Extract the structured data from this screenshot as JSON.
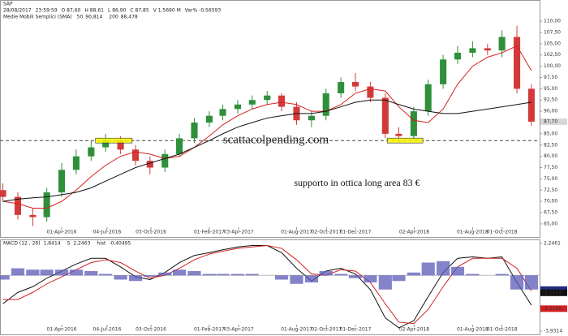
{
  "chart_data": [
    {
      "type": "candlestick",
      "title": "SAP",
      "header_items": [
        "28/08/2017",
        "23:59:59",
        "O 87,60",
        "H 88,61",
        "L 86,90",
        "C 87,85",
        "V 1,5690 M",
        "Var% -0,56593"
      ],
      "sma_label": "Medie Mobili Semplici (SMA)",
      "watermark": "scattacolpending.com",
      "annotation": "supporto in ottica long area 83 €",
      "x": [
        "2015-12-01",
        "2016-01-01",
        "2016-02-01",
        "2016-03-01",
        "2016-04-01",
        "2016-05-01",
        "2016-06-01",
        "2016-07-01",
        "2016-08-01",
        "2016-09-01",
        "2016-10-01",
        "2016-11-01",
        "2016-12-01",
        "2017-01-01",
        "2017-02-01",
        "2017-03-01",
        "2017-04-01",
        "2017-05-01",
        "2017-06-01",
        "2017-07-01",
        "2017-08-01",
        "2017-09-01",
        "2017-10-01",
        "2017-11-01",
        "2017-12-01",
        "2018-01-01",
        "2018-02-01",
        "2018-03-01",
        "2018-04-01",
        "2018-05-01",
        "2018-06-01",
        "2018-07-01",
        "2018-08-01",
        "2018-09-01",
        "2018-10-01",
        "2018-11-01",
        "2018-12-01"
      ],
      "open": [
        72.5,
        71,
        67,
        66.5,
        72,
        77,
        80,
        82,
        83.5,
        81.5,
        79,
        77.5,
        80.5,
        84,
        87.5,
        89,
        90.5,
        91.5,
        92.5,
        93.5,
        91,
        88,
        89,
        94,
        96.5,
        95.5,
        93,
        85,
        84.5,
        90,
        96,
        101.5,
        103,
        104,
        103.5,
        106.5,
        95
      ],
      "high": [
        74,
        72,
        68.5,
        73,
        78.5,
        81.5,
        83.5,
        85,
        84.5,
        82.5,
        80,
        81.5,
        85,
        88.5,
        90,
        91.5,
        92.5,
        93.5,
        94.5,
        94,
        92,
        90,
        95,
        97.5,
        98.5,
        96.5,
        94,
        86.5,
        91,
        97,
        102.5,
        104.5,
        105.5,
        105,
        108,
        109,
        96
      ],
      "low": [
        70,
        66,
        64.5,
        65.5,
        71,
        76,
        79,
        81,
        80.5,
        78,
        76,
        76.5,
        80,
        83,
        86.5,
        88,
        89.5,
        90.5,
        91.5,
        90,
        87,
        86.5,
        88,
        93,
        94.5,
        92,
        84,
        83,
        83.5,
        89,
        95,
        100.5,
        102,
        102.5,
        102,
        94,
        86.8
      ],
      "close": [
        71,
        67,
        66.5,
        72,
        77,
        80,
        82,
        83.5,
        81.5,
        79,
        77.5,
        80.5,
        84,
        87.5,
        89,
        90.5,
        91.5,
        92.5,
        93.5,
        91,
        88,
        89,
        94,
        96.5,
        95.5,
        93,
        85,
        84.5,
        90,
        96,
        101.5,
        103,
        104,
        103.5,
        106.5,
        95,
        87.7
      ],
      "up_color": "#2f8f3a",
      "down_color": "#d23a3a",
      "series": [
        {
          "name": "50",
          "value_label": "90,814",
          "color": "#d42020",
          "values": [
            70,
            69.5,
            68.5,
            68.5,
            70,
            72.5,
            75.5,
            78,
            80,
            81,
            80.5,
            79.5,
            80,
            82,
            84.5,
            87,
            89,
            90.5,
            91.5,
            92,
            91.5,
            90,
            90,
            91.5,
            94,
            95,
            94.5,
            91,
            88,
            87.5,
            90.5,
            96,
            100,
            102,
            103,
            104.5,
            99
          ]
        },
        {
          "name": "200",
          "value_label": "88,478",
          "color": "#111111",
          "values": [
            70,
            70.5,
            70.8,
            71,
            71.5,
            72,
            73,
            74.5,
            76,
            77.5,
            78.5,
            79.5,
            80.5,
            82,
            83.5,
            85,
            86.5,
            87.5,
            88.5,
            89,
            89.5,
            89.5,
            90,
            91,
            92,
            92.5,
            92.5,
            91.5,
            90.5,
            90,
            89.5,
            89.5,
            90,
            90.5,
            91,
            91.5,
            92
          ]
        }
      ],
      "support_level": 83.5,
      "highlights": [
        {
          "start": "2016-06-10",
          "end": "2016-08-25",
          "value": 83.5
        },
        {
          "start": "2018-02-05",
          "end": "2018-04-20",
          "value": 83.5
        }
      ],
      "last_price": {
        "value": 87.7,
        "label": "87,70"
      },
      "xlim": [
        "2015-11-25",
        "2018-12-18"
      ],
      "xticks": [
        {
          "value": "2016-04-01",
          "label": "01-Apr-2016"
        },
        {
          "value": "2016-07-04",
          "label": "04-Jul-2016"
        },
        {
          "value": "2016-10-03",
          "label": "03-Oct-2016"
        },
        {
          "value": "2017-02-01",
          "label": "01-Feb-2017"
        },
        {
          "value": "2017-04-03",
          "label": "03-Apr-2017"
        },
        {
          "value": "2017-08-01",
          "label": "01-Aug-2017"
        },
        {
          "value": "2017-10-02",
          "label": "02-Oct-2017"
        },
        {
          "value": "2017-12-01",
          "label": "01-Dec-2017"
        },
        {
          "value": "2018-04-02",
          "label": "02-Apr-2018"
        },
        {
          "value": "2018-08-01",
          "label": "01-Aug-2018"
        },
        {
          "value": "2018-10-01",
          "label": "01-Oct-2018"
        }
      ],
      "ylim": [
        62.1,
        114.7
      ],
      "yticks": [
        {
          "value": 65,
          "label": "65,00"
        },
        {
          "value": 67.5,
          "label": "67,50"
        },
        {
          "value": 70,
          "label": "70,00"
        },
        {
          "value": 72.5,
          "label": "72,50"
        },
        {
          "value": 75,
          "label": "75,00"
        },
        {
          "value": 77.5,
          "label": "77,50"
        },
        {
          "value": 80,
          "label": "80,00"
        },
        {
          "value": 82.5,
          "label": "82,50"
        },
        {
          "value": 85,
          "label": "85,00"
        },
        {
          "value": 90,
          "label": "90,00"
        },
        {
          "value": 92.5,
          "label": "92,50"
        },
        {
          "value": 95,
          "label": "95,00"
        },
        {
          "value": 97.5,
          "label": "97,50"
        },
        {
          "value": 100,
          "label": "100,00"
        },
        {
          "value": 102.5,
          "label": "102,50"
        },
        {
          "value": 105,
          "label": "105,00"
        },
        {
          "value": 107.5,
          "label": "107,50"
        },
        {
          "value": 110,
          "label": "110,00"
        }
      ]
    },
    {
      "type": "macd",
      "series": [
        {
          "name": "MACD (12 , 26)",
          "value_label": "1,8414",
          "color": "#111111",
          "values": [
            -2,
            -1.2,
            -0.8,
            -0.2,
            0.3,
            0.8,
            1.2,
            1.2,
            0.6,
            -0.1,
            -0.3,
            0.2,
            0.9,
            1.4,
            1.6,
            1.8,
            2.0,
            2.1,
            2.1,
            1.6,
            0.5,
            -0.4,
            0.3,
            0.5,
            0.1,
            -1.0,
            -3.0,
            -3.7,
            -3.2,
            -1.5,
            0.2,
            1.2,
            1.3,
            1.2,
            1.3,
            -0.5,
            -2.1
          ]
        },
        {
          "name": "S",
          "value_label": "2,2463",
          "color": "#d42020",
          "values": [
            -1.7,
            -1.7,
            -1.2,
            -0.6,
            -0.1,
            0.4,
            0.9,
            1.1,
            0.9,
            0.3,
            -0.2,
            0.0,
            0.5,
            1.1,
            1.5,
            1.7,
            1.9,
            2.0,
            2.1,
            1.9,
            1.1,
            0.1,
            0.0,
            0.4,
            0.3,
            -0.5,
            -2.0,
            -3.3,
            -3.4,
            -2.4,
            -0.8,
            0.6,
            1.2,
            1.2,
            1.2,
            0.5,
            -1.1
          ]
        },
        {
          "name": "hist",
          "value_label": "-0,40495",
          "color": "#5a5ab8",
          "values": [
            -0.3,
            0.5,
            0.4,
            0.4,
            0.4,
            0.4,
            0.3,
            0.1,
            -0.3,
            -0.4,
            -0.1,
            0.2,
            0.4,
            0.3,
            0.1,
            0.1,
            0.1,
            0.1,
            0,
            -0.3,
            -0.6,
            -0.5,
            0.3,
            0.1,
            -0.2,
            -0.5,
            -1.0,
            -0.4,
            0.2,
            0.9,
            1.0,
            0.6,
            0.1,
            0,
            0.1,
            -1.0,
            -1.0
          ]
        }
      ],
      "right_labels": [
        {
          "value": -1.0011,
          "label": "-1,0011",
          "color": "#1f2a8a"
        },
        {
          "value": -1.1174,
          "label": "-1,1174",
          "color": "#111111"
        },
        {
          "value": -2.1195,
          "label": "-2,1195",
          "color": "#d42020"
        }
      ],
      "ylim": [
        -3.9314,
        2.2461
      ],
      "yticks": [
        {
          "value": -3.9314,
          "label": "-3,9314"
        },
        {
          "value": 2.2461,
          "label": "2,2461"
        }
      ]
    }
  ]
}
